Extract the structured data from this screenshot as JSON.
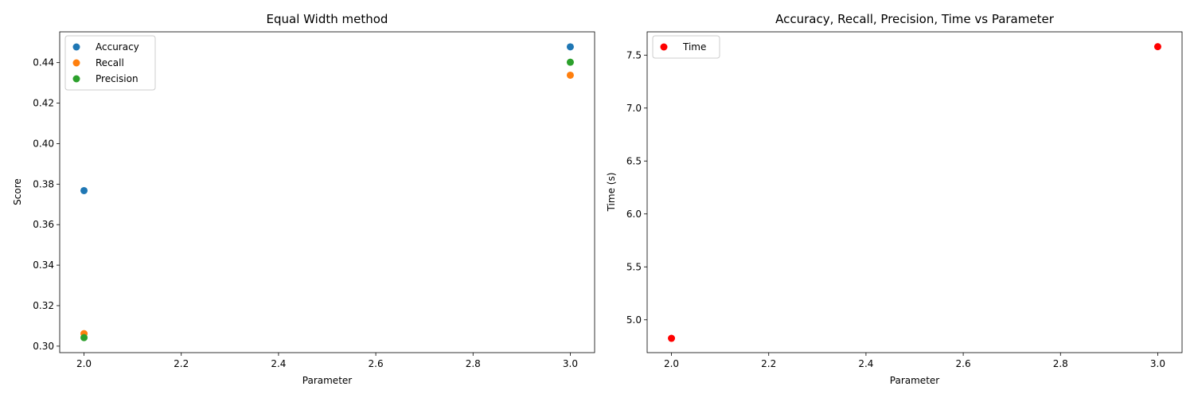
{
  "chart_data": [
    {
      "type": "scatter",
      "title": "Equal Width method",
      "xlabel": "Parameter",
      "ylabel": "Score",
      "xlim": [
        1.95,
        3.05
      ],
      "ylim": [
        0.2968,
        0.4552
      ],
      "xticks": [
        2.0,
        2.2,
        2.4,
        2.6,
        2.8,
        3.0
      ],
      "xtick_labels": [
        "2.0",
        "2.2",
        "2.4",
        "2.6",
        "2.8",
        "3.0"
      ],
      "yticks": [
        0.3,
        0.32,
        0.34,
        0.36,
        0.38,
        0.4,
        0.42,
        0.44
      ],
      "ytick_labels": [
        "0.30",
        "0.32",
        "0.34",
        "0.36",
        "0.38",
        "0.40",
        "0.42",
        "0.44"
      ],
      "grid": false,
      "legend_position": "upper-left",
      "series": [
        {
          "name": "Accuracy",
          "color": "#1f77b4",
          "x": [
            2.0,
            3.0
          ],
          "y": [
            0.3768,
            0.4478
          ]
        },
        {
          "name": "Recall",
          "color": "#ff7f0e",
          "x": [
            2.0,
            3.0
          ],
          "y": [
            0.3062,
            0.4338
          ]
        },
        {
          "name": "Precision",
          "color": "#2ca02c",
          "x": [
            2.0,
            3.0
          ],
          "y": [
            0.3042,
            0.4402
          ]
        }
      ]
    },
    {
      "type": "scatter",
      "title": "Accuracy, Recall, Precision, Time vs Parameter",
      "xlabel": "Parameter",
      "ylabel": "Time (s)",
      "xlim": [
        1.95,
        3.05
      ],
      "ylim": [
        4.69,
        7.72
      ],
      "xticks": [
        2.0,
        2.2,
        2.4,
        2.6,
        2.8,
        3.0
      ],
      "xtick_labels": [
        "2.0",
        "2.2",
        "2.4",
        "2.6",
        "2.8",
        "3.0"
      ],
      "yticks": [
        5.0,
        5.5,
        6.0,
        6.5,
        7.0,
        7.5
      ],
      "ytick_labels": [
        "5.0",
        "5.5",
        "6.0",
        "6.5",
        "7.0",
        "7.5"
      ],
      "grid": false,
      "legend_position": "upper-left",
      "series": [
        {
          "name": "Time",
          "color": "#ff0000",
          "x": [
            2.0,
            3.0
          ],
          "y": [
            4.825,
            7.58
          ]
        }
      ]
    }
  ]
}
